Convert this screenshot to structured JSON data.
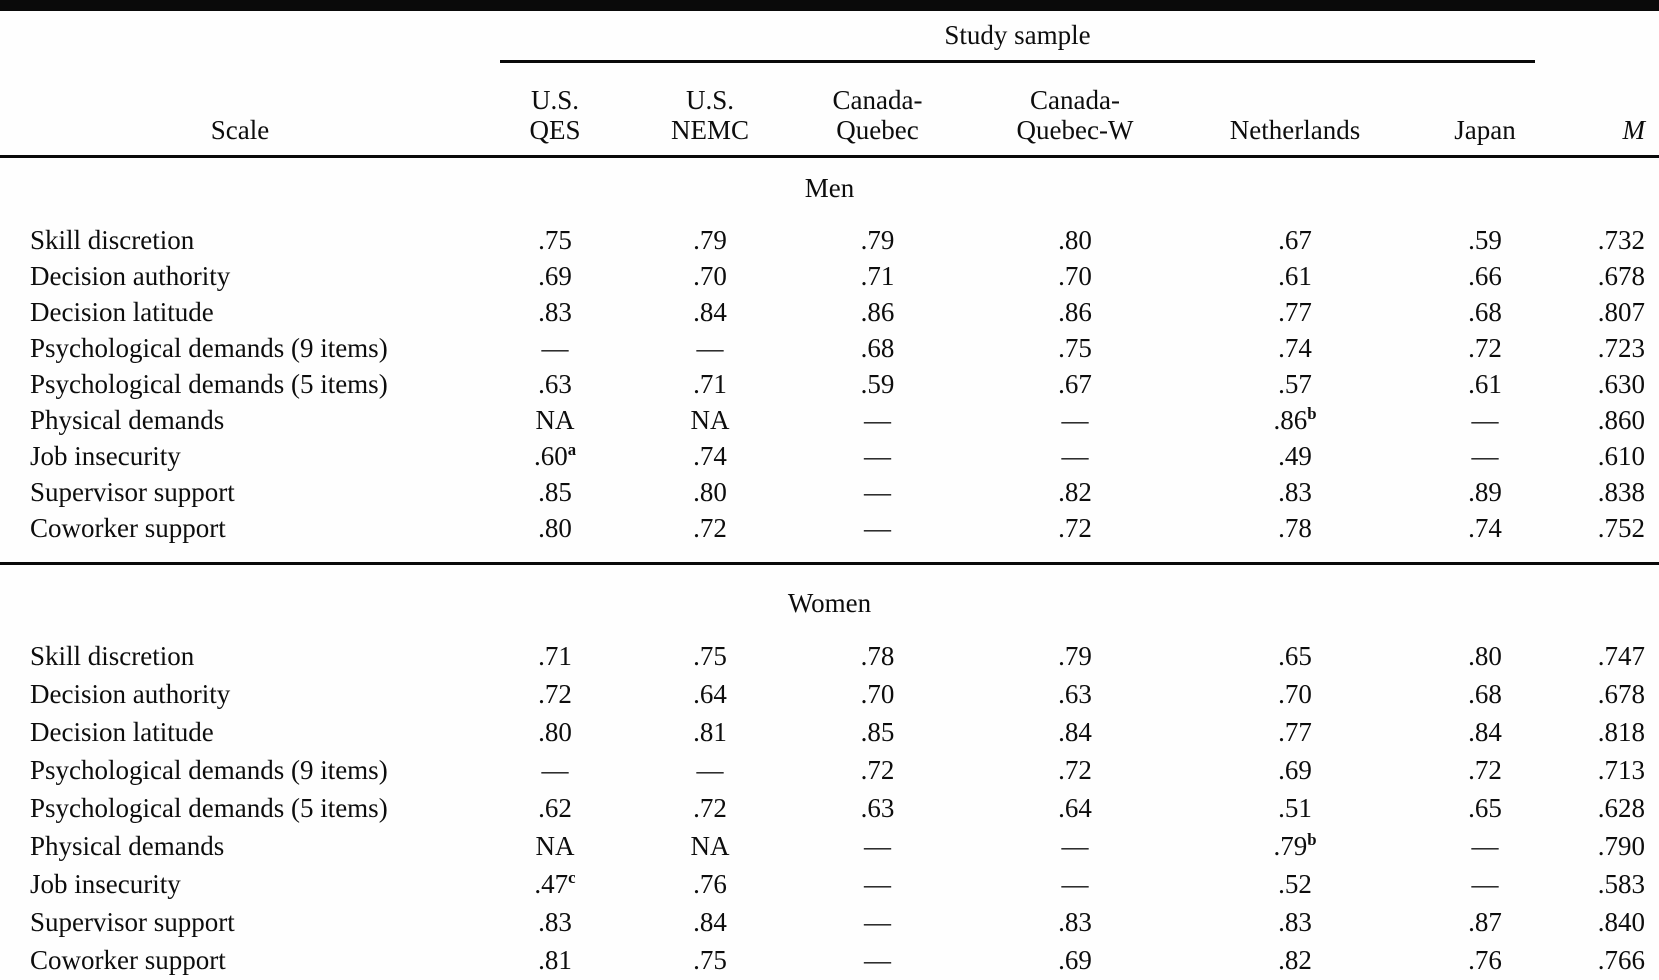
{
  "table": {
    "spanner_label": "Study sample",
    "scale_header": "Scale",
    "column_headers": [
      "U.S.\nQES",
      "U.S.\nNEMC",
      "Canada-\nQuebec",
      "Canada-\nQuebec-W",
      "Netherlands",
      "Japan",
      "M"
    ],
    "missing_marker": "—",
    "not_applicable_marker": "NA",
    "ink_color": "#0a0a0a",
    "paper_color": "#fefefe",
    "sections": [
      {
        "title": "Men",
        "rows": [
          {
            "scale": "Skill discretion",
            "values": [
              ".75",
              ".79",
              ".79",
              ".80",
              ".67",
              ".59",
              ".732"
            ]
          },
          {
            "scale": "Decision authority",
            "values": [
              ".69",
              ".70",
              ".71",
              ".70",
              ".61",
              ".66",
              ".678"
            ]
          },
          {
            "scale": "Decision latitude",
            "values": [
              ".83",
              ".84",
              ".86",
              ".86",
              ".77",
              ".68",
              ".807"
            ]
          },
          {
            "scale": "Psychological demands (9 items)",
            "values": [
              "—",
              "—",
              ".68",
              ".75",
              ".74",
              ".72",
              ".723"
            ]
          },
          {
            "scale": "Psychological demands (5 items)",
            "values": [
              ".63",
              ".71",
              ".59",
              ".67",
              ".57",
              ".61",
              ".630"
            ]
          },
          {
            "scale": "Physical demands",
            "values": [
              "NA",
              "NA",
              "—",
              "—",
              ".86^b",
              "—",
              ".860"
            ]
          },
          {
            "scale": "Job insecurity",
            "values": [
              ".60^a",
              ".74",
              "—",
              "—",
              ".49",
              "—",
              ".610"
            ]
          },
          {
            "scale": "Supervisor support",
            "values": [
              ".85",
              ".80",
              "—",
              ".82",
              ".83",
              ".89",
              ".838"
            ]
          },
          {
            "scale": "Coworker support",
            "values": [
              ".80",
              ".72",
              "—",
              ".72",
              ".78",
              ".74",
              ".752"
            ]
          }
        ]
      },
      {
        "title": "Women",
        "rows": [
          {
            "scale": "Skill discretion",
            "values": [
              ".71",
              ".75",
              ".78",
              ".79",
              ".65",
              ".80",
              ".747"
            ]
          },
          {
            "scale": "Decision authority",
            "values": [
              ".72",
              ".64",
              ".70",
              ".63",
              ".70",
              ".68",
              ".678"
            ]
          },
          {
            "scale": "Decision latitude",
            "values": [
              ".80",
              ".81",
              ".85",
              ".84",
              ".77",
              ".84",
              ".818"
            ]
          },
          {
            "scale": "Psychological demands (9 items)",
            "values": [
              "—",
              "—",
              ".72",
              ".72",
              ".69",
              ".72",
              ".713"
            ]
          },
          {
            "scale": "Psychological demands (5 items)",
            "values": [
              ".62",
              ".72",
              ".63",
              ".64",
              ".51",
              ".65",
              ".628"
            ]
          },
          {
            "scale": "Physical demands",
            "values": [
              "NA",
              "NA",
              "—",
              "—",
              ".79^b",
              "—",
              ".790"
            ]
          },
          {
            "scale": "Job insecurity",
            "values": [
              ".47^c",
              ".76",
              "—",
              "—",
              ".52",
              "—",
              ".583"
            ]
          },
          {
            "scale": "Supervisor support",
            "values": [
              ".83",
              ".84",
              "—",
              ".83",
              ".83",
              ".87",
              ".840"
            ]
          },
          {
            "scale": "Coworker support",
            "values": [
              ".81",
              ".75",
              "—",
              ".69",
              ".82",
              ".76",
              ".766"
            ]
          }
        ]
      }
    ]
  }
}
